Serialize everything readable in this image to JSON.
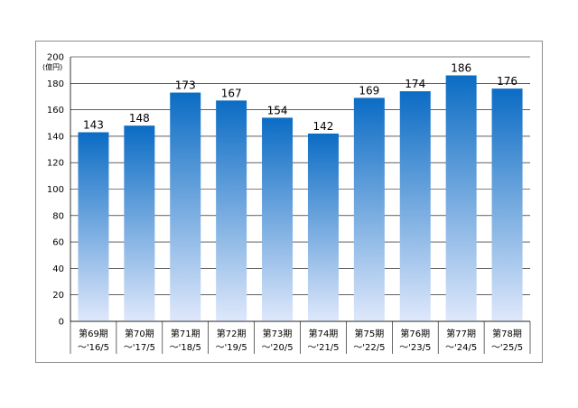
{
  "chart_data": {
    "type": "bar",
    "title": "",
    "xlabel": "",
    "ylabel": "",
    "unit_label": "(億円)",
    "ylim": [
      0,
      200
    ],
    "yticks": [
      0,
      20,
      40,
      60,
      80,
      100,
      120,
      140,
      160,
      180,
      200
    ],
    "grid": true,
    "categories": [
      {
        "line1": "第69期",
        "line2": "～'16/5"
      },
      {
        "line1": "第70期",
        "line2": "～'17/5"
      },
      {
        "line1": "第71期",
        "line2": "～'18/5"
      },
      {
        "line1": "第72期",
        "line2": "～'19/5"
      },
      {
        "line1": "第73期",
        "line2": "～'20/5"
      },
      {
        "line1": "第74期",
        "line2": "～'21/5"
      },
      {
        "line1": "第75期",
        "line2": "～'22/5"
      },
      {
        "line1": "第76期",
        "line2": "～'23/5"
      },
      {
        "line1": "第77期",
        "line2": "～'24/5"
      },
      {
        "line1": "第78期",
        "line2": "～'25/5"
      }
    ],
    "values": [
      143,
      148,
      173,
      167,
      154,
      142,
      169,
      174,
      186,
      176
    ],
    "colors": {
      "bar_top": "#0b6cc4",
      "bar_bottom": "#dfe8fb",
      "grid": "#000000"
    }
  }
}
